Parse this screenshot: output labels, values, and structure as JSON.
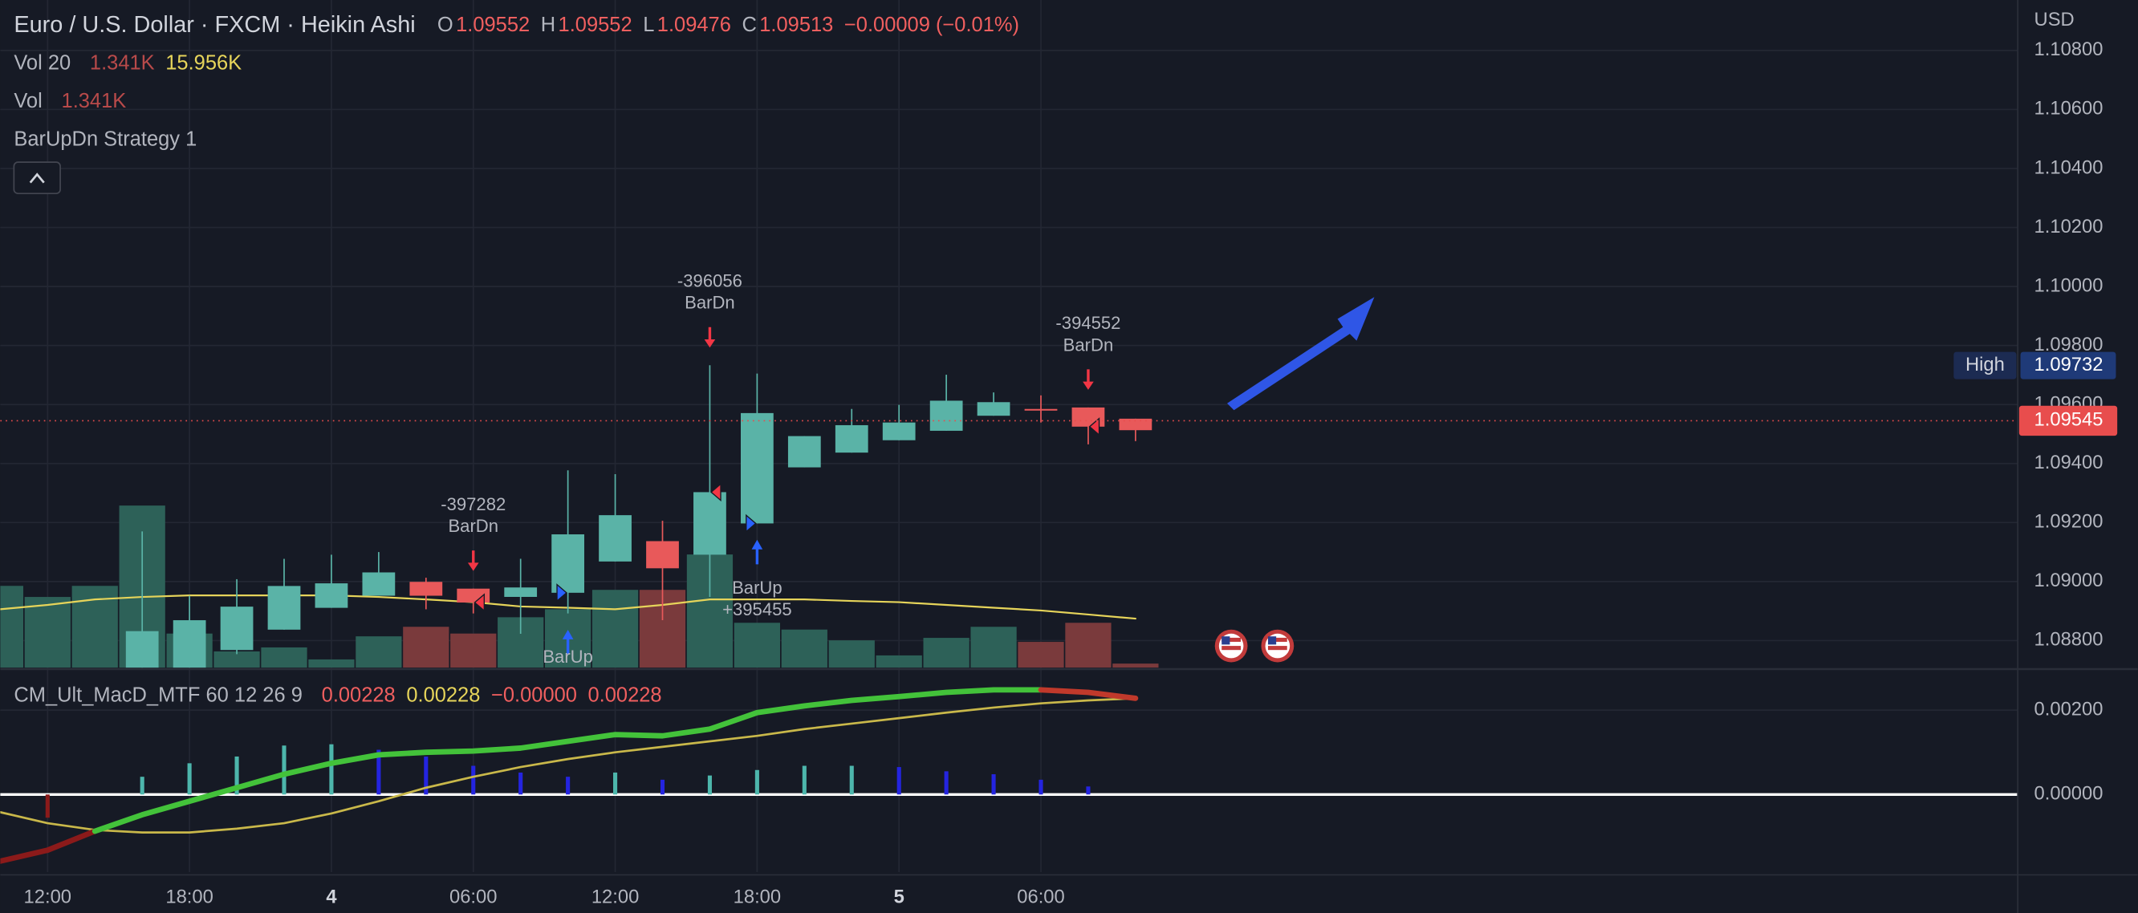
{
  "chart_data": [
    {
      "type": "candlestick",
      "title": "Euro / U.S. Dollar · FXCM · Heikin Ashi",
      "ohlc_legend": [
        {
          "label": "O",
          "value": 1.09552
        },
        {
          "label": "H",
          "value": 1.09552
        },
        {
          "label": "L",
          "value": 1.09476
        },
        {
          "label": "C",
          "value": 1.09513
        }
      ],
      "change": "−0.00009 (−0.01%)",
      "unit": "USD",
      "categories": [
        null,
        "12:00",
        null,
        null,
        "18:00",
        null,
        null,
        "4",
        null,
        null,
        "06:00",
        null,
        null,
        "12:00",
        null,
        null,
        "18:00",
        null,
        null,
        "5",
        null,
        null,
        "06:00",
        null,
        null
      ],
      "open": [
        null,
        null,
        null,
        1.08708,
        1.08708,
        1.08768,
        1.08837,
        1.08911,
        1.08952,
        1.08999,
        1.08976,
        1.08948,
        1.08962,
        1.09068,
        1.09137,
        1.09091,
        1.09197,
        1.09387,
        1.09437,
        1.09479,
        1.09511,
        1.09562,
        1.09585,
        1.0959,
        1.09552
      ],
      "high": [
        null,
        null,
        null,
        1.0917,
        1.08952,
        1.09008,
        1.09077,
        1.09091,
        1.091,
        1.09013,
        1.08976,
        1.09077,
        1.09377,
        1.09364,
        1.09206,
        1.09733,
        1.09705,
        1.09493,
        1.09585,
        1.09599,
        1.09701,
        1.09641,
        1.09631,
        1.0959,
        1.09552
      ],
      "low": [
        null,
        null,
        null,
        1.08708,
        1.08708,
        1.08754,
        1.08837,
        1.08911,
        1.08952,
        1.08906,
        1.08892,
        1.08823,
        1.08892,
        1.09068,
        1.08869,
        1.08948,
        1.09197,
        1.09387,
        1.09437,
        1.09479,
        1.09511,
        1.09562,
        1.09539,
        1.09465,
        1.09476
      ],
      "close": [
        null,
        null,
        null,
        1.08832,
        1.08869,
        1.08915,
        1.08985,
        1.08994,
        1.09031,
        1.08952,
        1.08929,
        1.0898,
        1.0916,
        1.09225,
        1.09045,
        1.09303,
        1.09571,
        1.09493,
        1.0953,
        1.09539,
        1.09613,
        1.09608,
        1.09585,
        1.09525,
        1.09513
      ],
      "up_color": "#5ab3a7",
      "down_color": "#e8595a",
      "ylim": [
        1.08708,
        1.10971
      ],
      "yticks": [
        {
          "value": 1.088,
          "label": "1.08800"
        },
        {
          "value": 1.09,
          "label": "1.09000"
        },
        {
          "value": 1.092,
          "label": "1.09200"
        },
        {
          "value": 1.094,
          "label": "1.09400"
        },
        {
          "value": 1.096,
          "label": "1.09600"
        },
        {
          "value": 1.098,
          "label": "1.09800"
        },
        {
          "value": 1.1,
          "label": "1.10000"
        },
        {
          "value": 1.102,
          "label": "1.10200"
        },
        {
          "value": 1.104,
          "label": "1.10400"
        },
        {
          "value": 1.106,
          "label": "1.10600"
        },
        {
          "value": 1.108,
          "label": "1.10800"
        }
      ],
      "grid": true,
      "high_marker": {
        "label": "High",
        "value": 1.09732
      },
      "last_price": {
        "value": 1.09545,
        "color": "#e84d4d"
      },
      "volume": {
        "label": "Vol",
        "legend_value": "1.341K",
        "values": [
          26.6,
          23.0,
          26.6,
          52.7,
          11.1,
          5.3,
          6.6,
          2.7,
          10.2,
          13.3,
          11.1,
          16.4,
          19.0,
          25.3,
          25.3,
          36.8,
          14.6,
          12.4,
          8.9,
          4.0,
          9.7,
          13.3,
          8.4,
          14.6,
          1.341
        ],
        "colors": [
          "#2d6158",
          "#2d6158",
          "#2d6158",
          "#2d6158",
          "#2d6158",
          "#2d6158",
          "#2d6158",
          "#2d6158",
          "#2d6158",
          "#7a3a3c",
          "#7a3a3c",
          "#2d6158",
          "#2d6158",
          "#2d6158",
          "#7a3a3c",
          "#2d6158",
          "#2d6158",
          "#2d6158",
          "#2d6158",
          "#2d6158",
          "#2d6158",
          "#2d6158",
          "#7a3a3c",
          "#7a3a3c",
          "#7a3a3c"
        ],
        "ylim": [
          0,
          217
        ]
      },
      "volume_ma": {
        "label": "Vol 20",
        "legend_values": [
          "1.341K",
          "15.956K"
        ],
        "legend_colors": [
          "#b84a4a",
          "#e6d45a"
        ],
        "color": "#e6d45a",
        "values": [
          19.0,
          20.4,
          22.2,
          23.0,
          23.5,
          23.5,
          23.5,
          23.5,
          23.0,
          22.2,
          21.3,
          19.9,
          19.5,
          19.0,
          20.4,
          22.2,
          22.2,
          22.2,
          21.7,
          21.3,
          20.4,
          19.5,
          18.6,
          17.3,
          15.956
        ]
      },
      "strategy": {
        "label": "BarUpDn Strategy 1",
        "signals": [
          {
            "index": 10,
            "label": "BarDn",
            "direction": "down",
            "profit": -397282
          },
          {
            "index": 12,
            "label": "BarUp",
            "direction": "up"
          },
          {
            "index": 15,
            "label": "BarDn",
            "direction": "down",
            "profit": -396056
          },
          {
            "index": 16,
            "label": "BarUp",
            "direction": "up",
            "profit": 395455,
            "profit_label": "+395455"
          },
          {
            "index": 23,
            "label": "BarDn",
            "direction": "down",
            "profit": -394552
          }
        ]
      }
    },
    {
      "type": "line",
      "title": "CM_Ult_MacD_MTF 60 12 26 9",
      "legend_values": [
        "0.00228",
        "0.00228",
        "−0.00000",
        "0.00228"
      ],
      "legend_colors": [
        "#f05f5f",
        "#e6d45a",
        "#f05f5f",
        "#f05f5f"
      ],
      "series": [
        {
          "values": [
            -0.00158,
            -0.00132,
            -0.00087,
            -0.00048,
            -0.00016,
            0.00016,
            0.00048,
            0.00074,
            0.00094,
            0.001,
            0.00103,
            0.0011,
            0.00126,
            0.00142,
            0.00139,
            0.00155,
            0.00194,
            0.0021,
            0.00223,
            0.00232,
            0.00242,
            0.00248,
            0.00248,
            0.00242,
            0.00228
          ],
          "colors": [
            "#8b1a1a",
            "#8b1a1a",
            "#8b1a1a",
            "#43c23a",
            "#43c23a",
            "#43c23a",
            "#43c23a",
            "#43c23a",
            "#43c23a",
            "#43c23a",
            "#43c23a",
            "#43c23a",
            "#43c23a",
            "#43c23a",
            "#43c23a",
            "#43c23a",
            "#43c23a",
            "#43c23a",
            "#43c23a",
            "#43c23a",
            "#43c23a",
            "#43c23a",
            "#43c23a",
            "#c0392b",
            "#c0392b"
          ]
        },
        {
          "values": [
            -0.00042,
            -0.00068,
            -0.00084,
            -0.0009,
            -0.0009,
            -0.00081,
            -0.00068,
            -0.00045,
            -0.00016,
            0.00016,
            0.00042,
            0.00065,
            0.00084,
            0.001,
            0.00113,
            0.00126,
            0.00139,
            0.00155,
            0.00168,
            0.00181,
            0.00194,
            0.00206,
            0.00216,
            0.00223,
            0.00228
          ],
          "color": "#c9b84a"
        }
      ],
      "histogram": {
        "values": [
          null,
          -0.00055,
          null,
          0.00042,
          0.00074,
          0.0009,
          0.00116,
          0.00119,
          0.00106,
          0.0009,
          0.00068,
          0.00052,
          0.00042,
          0.00052,
          0.00035,
          0.00045,
          0.00058,
          0.00068,
          0.00068,
          0.00065,
          0.00055,
          0.00048,
          0.00035,
          0.00019,
          null
        ],
        "colors": [
          null,
          "#8b1a1a",
          null,
          "#4db6ac",
          "#4db6ac",
          "#4db6ac",
          "#4db6ac",
          "#4db6ac",
          "#2424e0",
          "#2424e0",
          "#2424e0",
          "#2424e0",
          "#2424e0",
          "#4db6ac",
          "#2424e0",
          "#4db6ac",
          "#4db6ac",
          "#4db6ac",
          "#4db6ac",
          "#2424e0",
          "#2424e0",
          "#2424e0",
          "#2424e0",
          "#2424e0",
          null
        ]
      },
      "ylim": [
        -0.00184,
        0.00294
      ],
      "yticks": [
        {
          "value": 0,
          "label": "0.00000"
        },
        {
          "value": 0.002,
          "label": "0.00200"
        }
      ],
      "zero_line_color": "#ffffff"
    }
  ]
}
